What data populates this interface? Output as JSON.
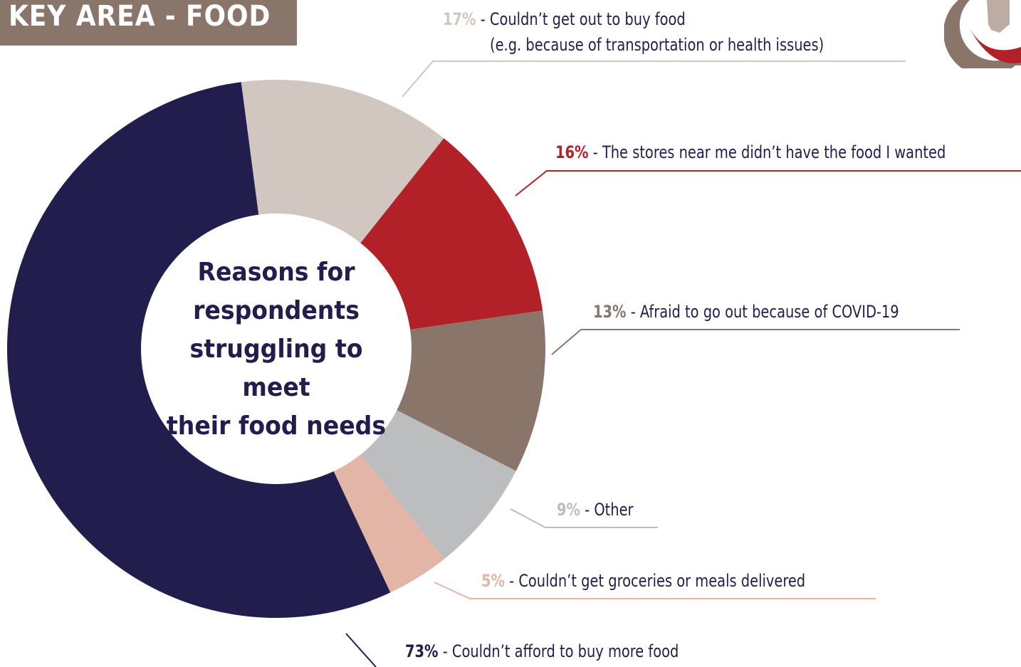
{
  "header": {
    "title": "KEY AREA - FOOD"
  },
  "logo": {
    "icon": "indiana-state-logo-icon"
  },
  "chart_data": {
    "type": "pie",
    "title": "Reasons for respondents struggling to meet their food needs",
    "title_lines": [
      "Reasons for",
      "respondents",
      "struggling to meet",
      "their food needs"
    ],
    "slices": [
      {
        "value": 17,
        "percent": "17%",
        "label": "- Couldn’t get out to buy food",
        "label2": "(e.g. because of transportation or health issues)",
        "color": "#d2c6c1",
        "pct_color": "#d2c6c1"
      },
      {
        "value": 16,
        "percent": "16%",
        "label": "- The stores near me didn’t have the food I wanted",
        "color": "#b32128",
        "pct_color": "#b32128"
      },
      {
        "value": 13,
        "percent": "13%",
        "label": "- Afraid to go out because of COVID-19",
        "color": "#89756a",
        "pct_color": "#89756a"
      },
      {
        "value": 9,
        "percent": "9%",
        "label": "- Other",
        "color": "#bcbdbf",
        "pct_color": "#bcbdbf"
      },
      {
        "value": 5,
        "percent": "5%",
        "label": "- Couldn’t get groceries or meals delivered",
        "color": "#e3b5a6",
        "pct_color": "#e3b5a6"
      },
      {
        "value": 73,
        "percent": "73%",
        "label": "- Couldn’t afford to buy more food",
        "color": "#211e4e",
        "pct_color": "#211e4e"
      }
    ]
  }
}
